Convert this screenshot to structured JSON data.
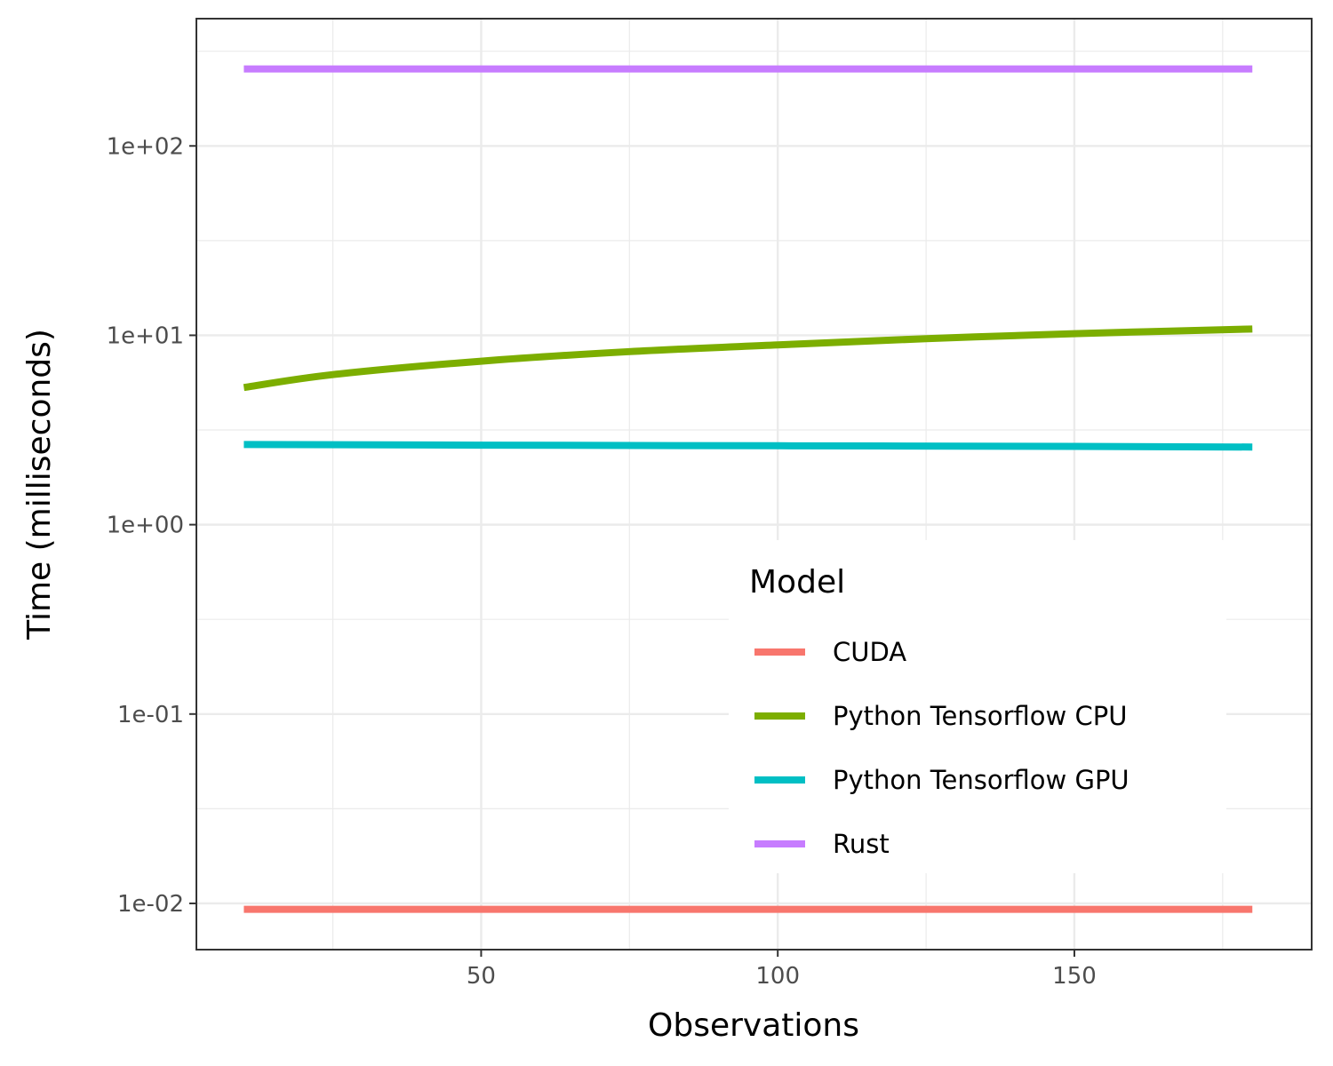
{
  "chart_data": {
    "type": "line",
    "xlabel": "Observations",
    "ylabel": "Time (milliseconds)",
    "y_scale": "log10",
    "xlim": [
      2,
      190
    ],
    "ylim": [
      0.0057,
      470
    ],
    "x_ticks": [
      50,
      100,
      150
    ],
    "x_tick_labels": [
      "50",
      "100",
      "150"
    ],
    "y_ticks": [
      0.01,
      0.1,
      1,
      10,
      100
    ],
    "y_tick_labels": [
      "1e-02",
      "1e-01",
      "1e+00",
      "1e+01",
      "1e+02"
    ],
    "grid": true,
    "legend": {
      "title": "Model",
      "position": "bottom-right"
    },
    "series": [
      {
        "name": "CUDA",
        "color": "#F8766D",
        "x": [
          10,
          50,
          100,
          150,
          180
        ],
        "y": [
          0.0093,
          0.0093,
          0.0093,
          0.0093,
          0.0093
        ]
      },
      {
        "name": "Python Tensorflow CPU",
        "color": "#7CAE00",
        "x": [
          10,
          25,
          50,
          75,
          100,
          125,
          150,
          180
        ],
        "y": [
          5.3,
          6.2,
          7.3,
          8.2,
          8.9,
          9.6,
          10.2,
          10.8
        ]
      },
      {
        "name": "Python Tensorflow GPU",
        "color": "#00BFC4",
        "x": [
          10,
          50,
          100,
          150,
          180
        ],
        "y": [
          2.65,
          2.63,
          2.61,
          2.59,
          2.57
        ]
      },
      {
        "name": "Rust",
        "color": "#C77CFF",
        "x": [
          10,
          50,
          100,
          150,
          180
        ],
        "y": [
          255,
          255,
          255,
          255,
          255
        ]
      }
    ]
  }
}
